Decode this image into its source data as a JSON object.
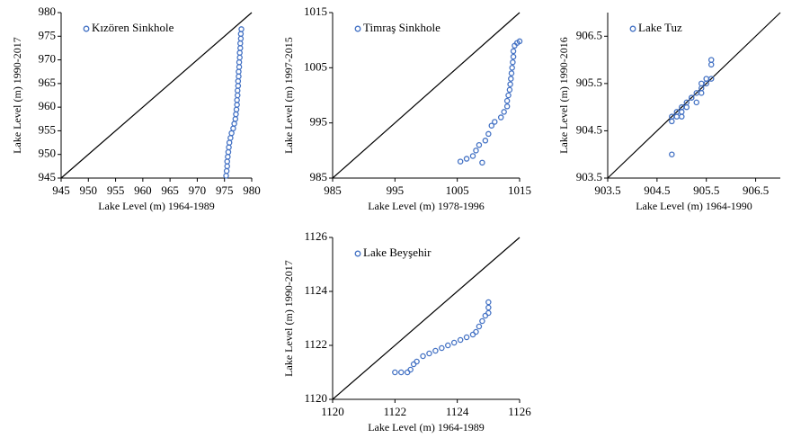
{
  "chart_data": [
    {
      "type": "scatter",
      "legend": "upper left",
      "xlabel": "Lake Level (m) 1964-1989",
      "ylabel": "Lake Level (m)  1990-2017",
      "xlim": [
        945,
        980
      ],
      "ylim": [
        945,
        980
      ],
      "xticks": [
        945,
        950,
        955,
        960,
        965,
        970,
        975,
        980
      ],
      "yticks": [
        945,
        950,
        955,
        960,
        965,
        970,
        975,
        980
      ],
      "x": [
        975.3,
        975.4,
        975.5,
        975.5,
        975.6,
        975.7,
        975.8,
        975.9,
        976.1,
        976.3,
        976.6,
        976.8,
        977.0,
        977.1,
        977.2,
        977.3,
        977.3,
        977.4,
        977.4,
        977.5,
        977.5,
        977.6,
        977.6,
        977.7,
        977.7,
        977.8,
        977.8,
        977.9,
        977.9,
        978.0,
        978.0,
        978.1
      ],
      "series": [
        {
          "name": "Kızören Sinkhole",
          "color": "#4472c4",
          "values": [
            945.5,
            946.5,
            947.5,
            948.5,
            949.5,
            950.5,
            951.5,
            952.5,
            953.5,
            954.5,
            955.5,
            956.5,
            957.5,
            958.5,
            959.5,
            960.5,
            961.5,
            962.5,
            963.5,
            964.5,
            965.5,
            966.5,
            967.5,
            968.5,
            969.5,
            970.5,
            971.5,
            972.5,
            973.5,
            974.5,
            975.5,
            976.5
          ]
        }
      ]
    },
    {
      "type": "scatter",
      "legend": "upper left",
      "xlabel": "Lake Level (m) 1978-1996",
      "ylabel": "Lake Level (m)  1997-2015",
      "xlim": [
        985,
        1015
      ],
      "ylim": [
        985,
        1015
      ],
      "xticks": [
        985,
        995,
        1005,
        1015
      ],
      "yticks": [
        985,
        995,
        1005,
        1015
      ],
      "x": [
        1005.5,
        1009,
        1006.5,
        1007.5,
        1008,
        1008.5,
        1009.5,
        1010,
        1010.5,
        1011,
        1012,
        1012.5,
        1013,
        1013,
        1013.2,
        1013.4,
        1013.5,
        1013.6,
        1013.7,
        1013.8,
        1013.9,
        1014,
        1014,
        1014.2,
        1014.6,
        1015
      ],
      "series": [
        {
          "name": "Timraş Sinkhole",
          "color": "#4472c4",
          "values": [
            988,
            987.8,
            988.5,
            989,
            990,
            991,
            991.8,
            993,
            994.5,
            995.2,
            996,
            997,
            998,
            999,
            1000,
            1001,
            1002,
            1003,
            1004,
            1005,
            1006,
            1007,
            1008,
            1009,
            1009.5,
            1009.8
          ]
        }
      ]
    },
    {
      "type": "scatter",
      "legend": "upper left",
      "xlabel": "Lake Level (m) 1964-1990",
      "ylabel": "Lake Level (m) 1990-2016",
      "xlim": [
        903.5,
        907
      ],
      "ylim": [
        903.5,
        907
      ],
      "xticks": [
        903.5,
        904.5,
        905.5,
        906.5
      ],
      "yticks": [
        903.5,
        904.5,
        905.5,
        906.5
      ],
      "x": [
        904.8,
        904.8,
        904.8,
        904.9,
        905.0,
        904.9,
        905.0,
        905.1,
        905.2,
        905.3,
        905.2,
        905.3,
        905.4,
        905.4,
        905.5,
        905.5,
        905.6,
        905.6,
        905.6,
        905.0,
        905.1,
        905.4
      ],
      "series": [
        {
          "name": "Lake Tuz",
          "color": "#4472c4",
          "values": [
            904.0,
            904.7,
            904.8,
            904.8,
            904.8,
            904.9,
            905.0,
            905.1,
            905.2,
            905.1,
            905.2,
            905.3,
            905.3,
            905.4,
            905.5,
            905.6,
            905.6,
            905.9,
            906.0,
            904.9,
            905.0,
            905.5
          ]
        }
      ]
    },
    {
      "type": "scatter",
      "legend": "upper left",
      "xlabel": "Lake Level (m) 1964-1989",
      "ylabel": "Lake Level (m) 1990-2017",
      "xlim": [
        1120,
        1126
      ],
      "ylim": [
        1120,
        1126
      ],
      "xticks": [
        1120,
        1122,
        1124,
        1126
      ],
      "yticks": [
        1120,
        1122,
        1124,
        1126
      ],
      "x": [
        1122,
        1122.2,
        1122.4,
        1122.5,
        1122.6,
        1122.7,
        1122.9,
        1123.1,
        1123.3,
        1123.5,
        1123.7,
        1123.9,
        1124.1,
        1124.3,
        1124.5,
        1124.6,
        1124.7,
        1124.8,
        1124.9,
        1125,
        1125,
        1125
      ],
      "series": [
        {
          "name": "Lake Beyşehir",
          "color": "#4472c4",
          "values": [
            1121,
            1121,
            1121,
            1121.1,
            1121.3,
            1121.4,
            1121.6,
            1121.7,
            1121.8,
            1121.9,
            1122,
            1122.1,
            1122.2,
            1122.3,
            1122.4,
            1122.5,
            1122.7,
            1122.9,
            1123.1,
            1123.2,
            1123.4,
            1123.6
          ]
        }
      ]
    }
  ]
}
